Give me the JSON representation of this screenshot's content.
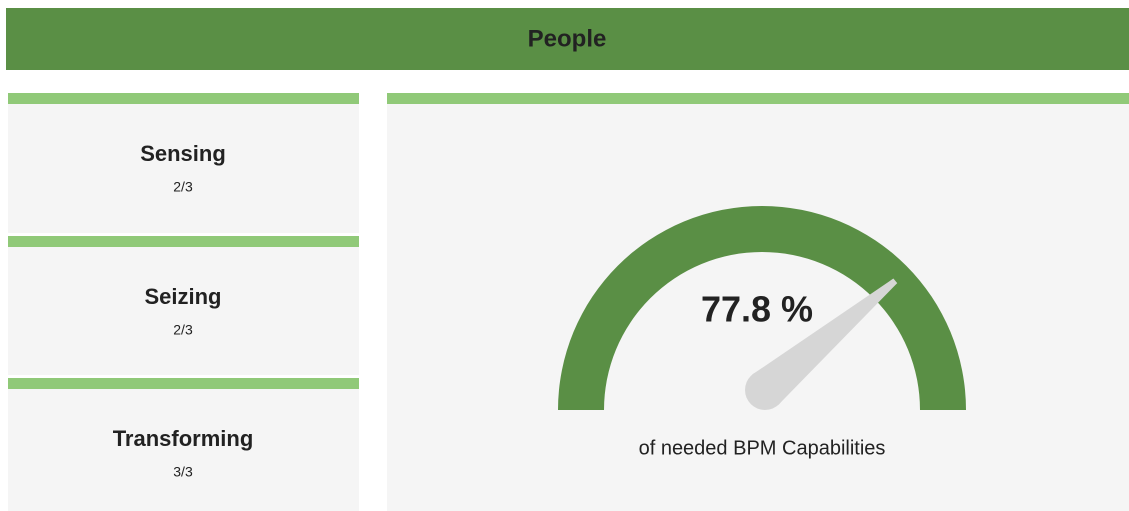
{
  "header": {
    "title": "People"
  },
  "cards": [
    {
      "title": "Sensing",
      "value": "2/3"
    },
    {
      "title": "Seizing",
      "value": "2/3"
    },
    {
      "title": "Transforming",
      "value": "3/3"
    }
  ],
  "gauge": {
    "value": 77.8,
    "value_label": "77.8 %",
    "caption": "of needed BPM Capabilities"
  }
}
